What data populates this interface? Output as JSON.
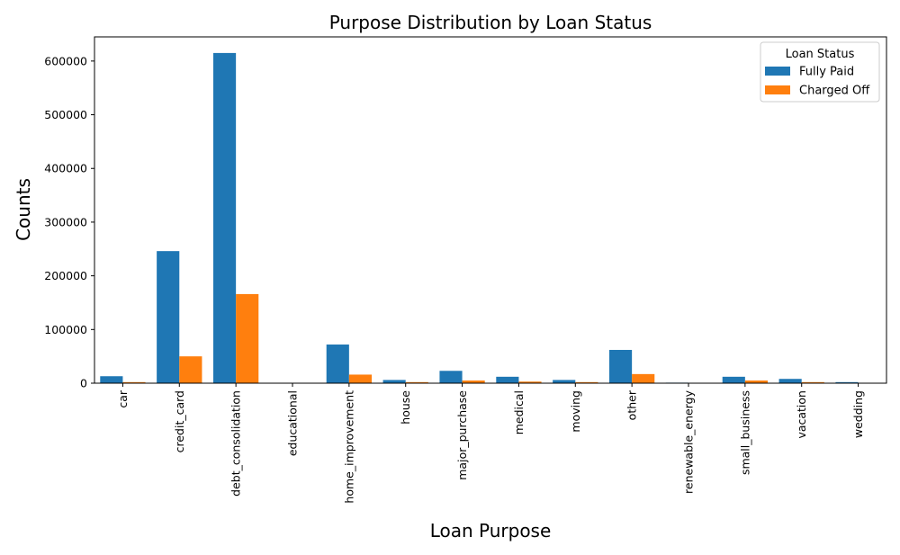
{
  "chart_data": {
    "type": "bar",
    "title": "Purpose Distribution by Loan Status",
    "xlabel": "Loan Purpose",
    "ylabel": "Counts",
    "categories": [
      "car",
      "credit_card",
      "debt_consolidation",
      "educational",
      "home_improvement",
      "house",
      "major_purchase",
      "medical",
      "moving",
      "other",
      "renewable_energy",
      "small_business",
      "vacation",
      "wedding"
    ],
    "series": [
      {
        "name": "Fully Paid",
        "color": "#1f77b4",
        "values": [
          13000,
          246000,
          615000,
          300,
          72000,
          6000,
          23000,
          12000,
          6000,
          62000,
          1000,
          12000,
          8000,
          2000
        ]
      },
      {
        "name": "Charged Off",
        "color": "#ff7f0e",
        "values": [
          2000,
          50000,
          166000,
          100,
          16000,
          2000,
          5000,
          3000,
          2000,
          17000,
          300,
          5000,
          2000,
          500
        ]
      }
    ],
    "ylim": [
      0,
      645000
    ],
    "yticks": [
      0,
      100000,
      200000,
      300000,
      400000,
      500000,
      600000
    ],
    "legend": {
      "title": "Loan Status",
      "position": "upper-right"
    },
    "grid": false
  }
}
